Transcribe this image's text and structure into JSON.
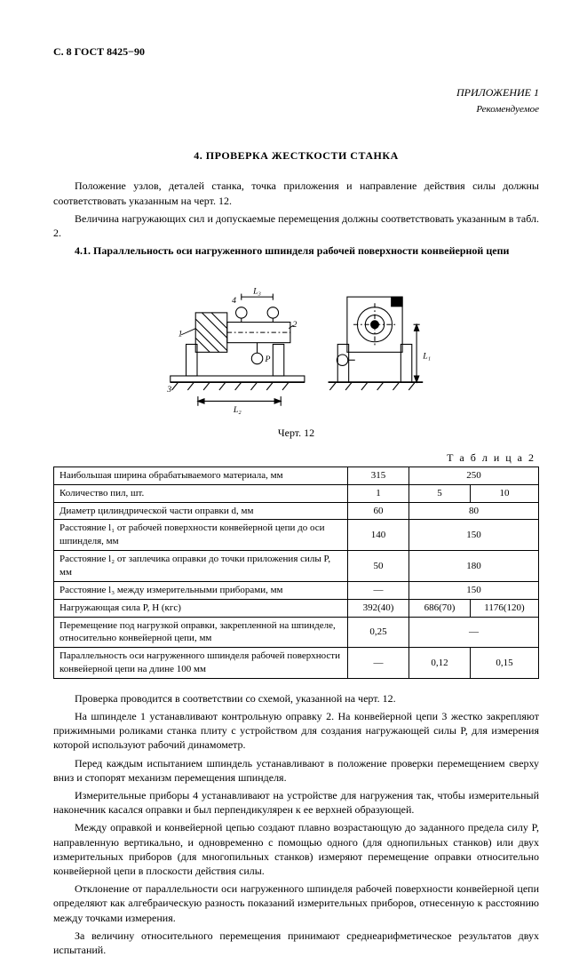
{
  "header": "С. 8 ГОСТ 8425−90",
  "appendix": {
    "title": "ПРИЛОЖЕНИЕ 1",
    "sub": "Рекомендуемое"
  },
  "title": "4.  ПРОВЕРКА ЖЕСТКОСТИ СТАНКА",
  "para": {
    "p1": "Положение узлов, деталей станка, точка приложения и направление действия силы должны соответствовать указанным на черт. 12.",
    "p2": "Величина нагружающих сил и допускаемые перемещения должны соответствовать указанным в табл. 2.",
    "p3": "4.1.  Параллельность оси нагруженного шпинделя рабочей поверхности конвейерной цепи"
  },
  "figure": {
    "caption": "Черт. 12",
    "labels": {
      "l1": "L₁",
      "l2": "L₂",
      "l3": "L₃",
      "P": "P",
      "n1": "1",
      "n2": "2",
      "n3": "3",
      "n4": "4"
    }
  },
  "table": {
    "caption": "Т а б л и ц а  2",
    "rows": [
      {
        "label": "Наибольшая ширина обрабатываемого материала, мм",
        "c1": "315",
        "c2": "250",
        "span2": true
      },
      {
        "label": "Количество пил, шт.",
        "c1": "1",
        "c2": "5",
        "c3": "10"
      },
      {
        "label": "Диаметр цилиндрической части оправки d, мм",
        "c1": "60",
        "c2": "80",
        "span2": true
      },
      {
        "label": "Расстояние l₁ от рабочей поверхности конвейерной цепи до оси шпинделя, мм",
        "c1": "140",
        "c2": "150",
        "span2": true
      },
      {
        "label": "Расстояние l₂ от заплечика оправки до точки приложения силы P, мм",
        "c1": "50",
        "c2": "180",
        "span2": true
      },
      {
        "label": "Расстояние l₃ между измерительными приборами, мм",
        "c1": "—",
        "c2": "150",
        "span2": true
      },
      {
        "label": "Нагружающая сила P, Н (кгс)",
        "c1": "392(40)",
        "c2": "686(70)",
        "c3": "1176(120)"
      },
      {
        "label": "Перемещение под нагрузкой оправки, закрепленной на шпинделе, относительно конвейерной цепи, мм",
        "c1": "0,25",
        "c2": "—",
        "span2": true
      },
      {
        "label": "Параллельность оси нагруженного шпинделя рабочей поверхности конвейерной цепи на длине 100 мм",
        "c1": "—",
        "c2": "0,12",
        "c3": "0,15"
      }
    ]
  },
  "body": {
    "b1": "Проверка проводится в соответствии со схемой, указанной на черт. 12.",
    "b2": "На шпинделе 1 устанавливают контрольную оправку 2. На конвейерной цепи 3 жестко закрепляют прижимными роликами станка плиту с устройством для создания нагружающей силы P, для измерения которой используют рабочий динамометр.",
    "b3": "Перед каждым испытанием шпиндель устанавливают в положение проверки перемещением сверху вниз и стопорят механизм перемещения шпинделя.",
    "b4": "Измерительные приборы 4 устанавливают на устройстве для нагружения так, чтобы измерительный наконечник касался оправки и был перпендикулярен к ее верхней образующей.",
    "b5": "Между оправкой и конвейерной цепью создают плавно возрастающую до заданного предела силу P, направленную вертикально, и одновременно с помощью одного (для однопильных станков) или двух измерительных приборов (для многопильных станков) измеряют перемещение оправки относительно конвейерной цепи в плоскости действия силы.",
    "b6": "Отклонение от параллельности оси нагруженного шпинделя рабочей поверхности конвейерной цепи определяют как алгебраическую разность показаний измерительных приборов, отнесенную к расстоянию между точками измерения.",
    "b7": "За величину относительного перемещения принимают среднеарифметическое результатов двух испытаний."
  }
}
